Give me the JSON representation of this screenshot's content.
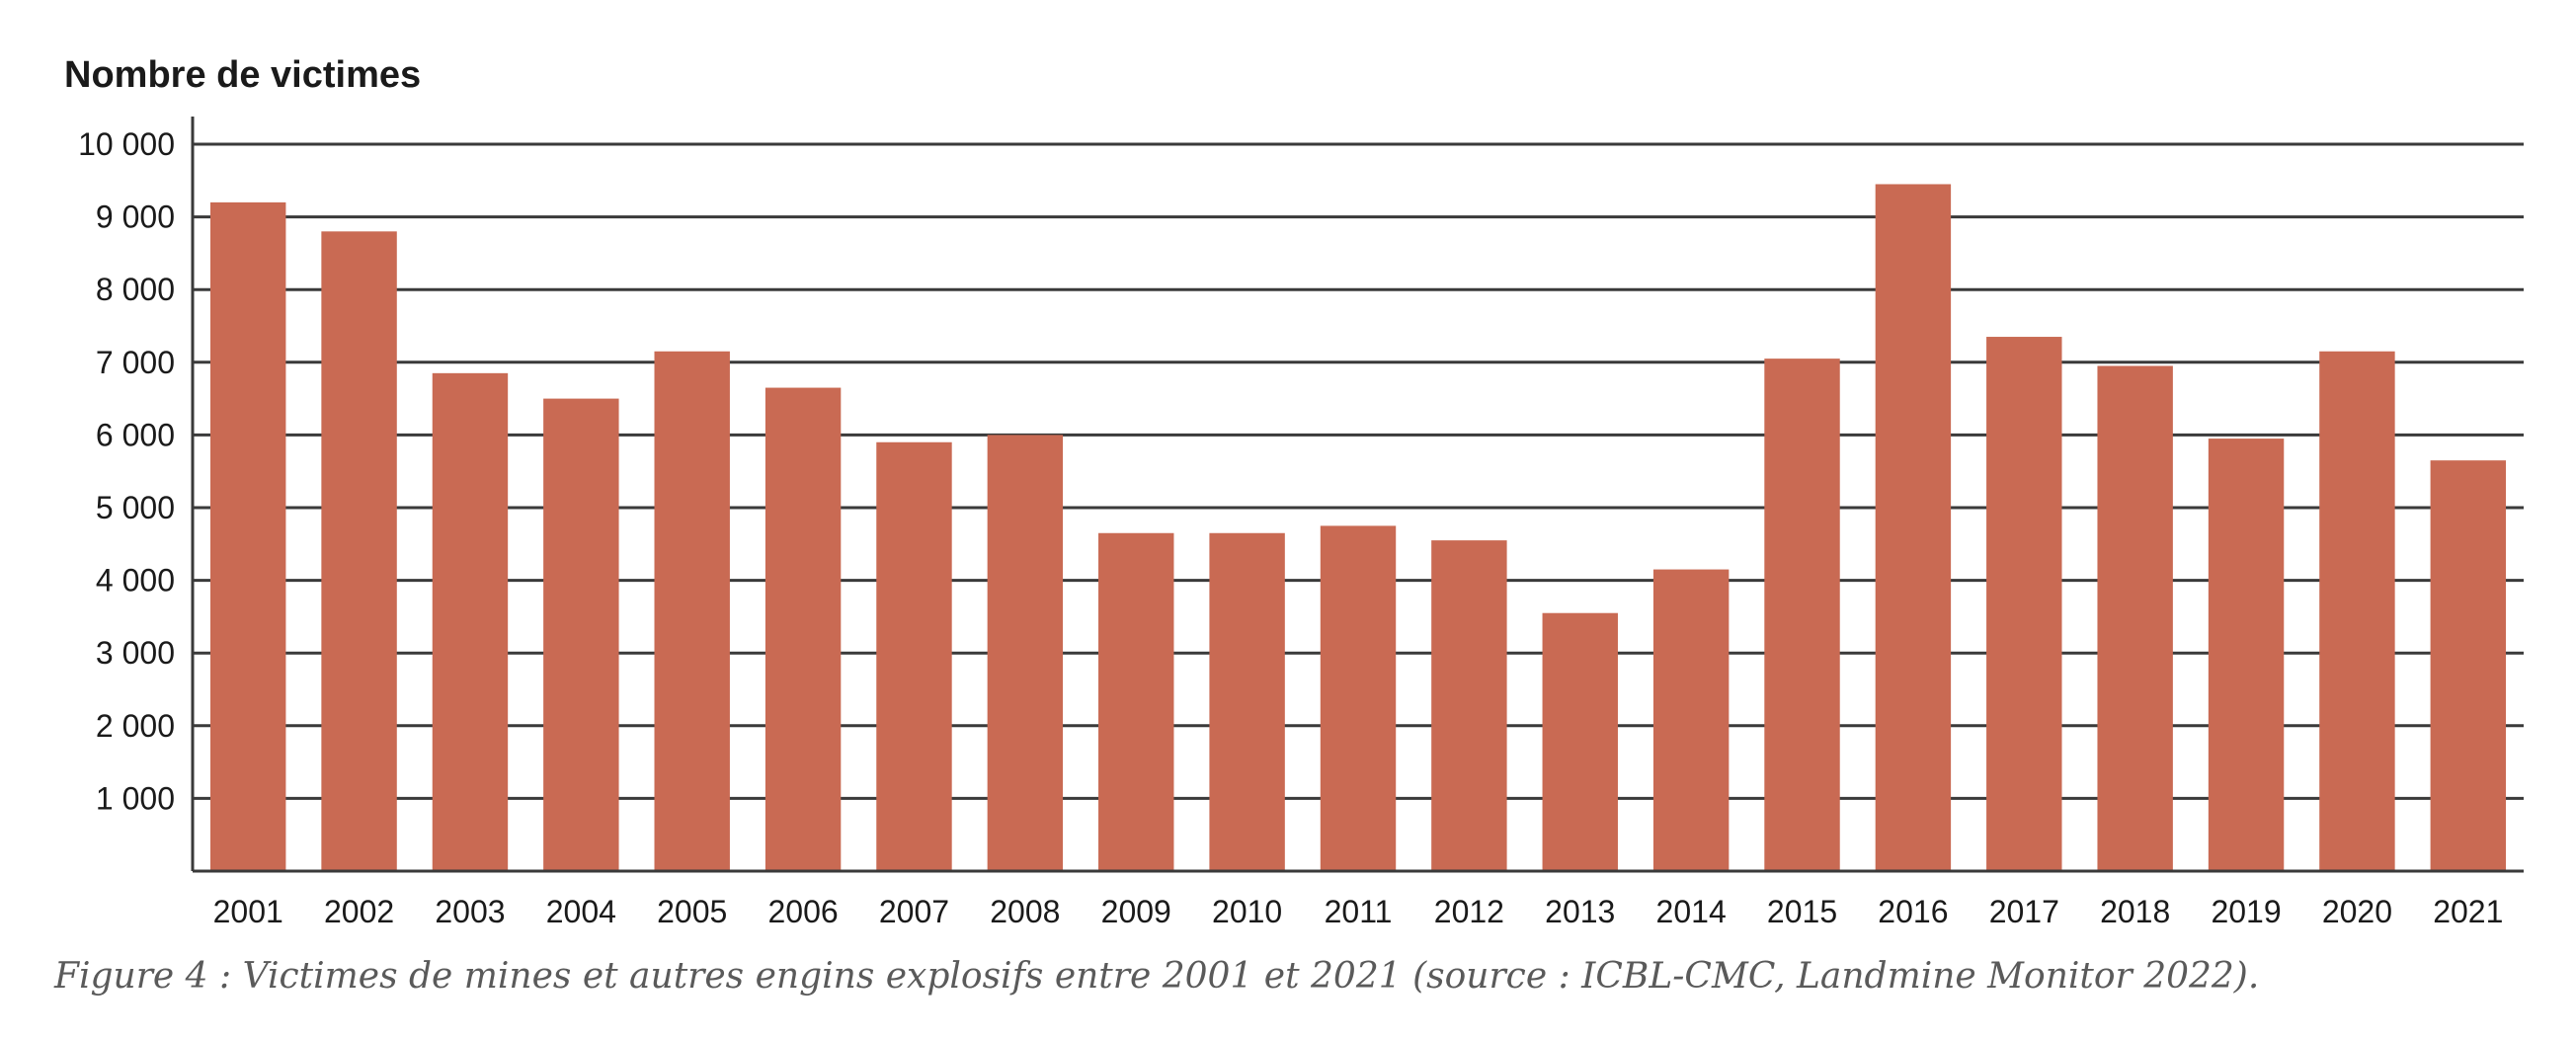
{
  "chart_data": {
    "type": "bar",
    "title": "",
    "ylabel": "Nombre de victimes",
    "xlabel": "",
    "categories": [
      "2001",
      "2002",
      "2003",
      "2004",
      "2005",
      "2006",
      "2007",
      "2008",
      "2009",
      "2010",
      "2011",
      "2012",
      "2013",
      "2014",
      "2015",
      "2016",
      "2017",
      "2018",
      "2019",
      "2020",
      "2021"
    ],
    "values": [
      9200,
      8800,
      6850,
      6500,
      7150,
      6650,
      5900,
      6000,
      4650,
      4650,
      4750,
      4550,
      3550,
      4150,
      7050,
      9450,
      7350,
      6950,
      5950,
      7150,
      5650
    ],
    "ylim": [
      0,
      10000
    ],
    "yticks": [
      1000,
      2000,
      3000,
      4000,
      5000,
      6000,
      7000,
      8000,
      9000,
      10000
    ],
    "ytick_labels": [
      "1 000",
      "2 000",
      "3 000",
      "4 000",
      "5 000",
      "6 000",
      "7 000",
      "8 000",
      "9 000",
      "10 000"
    ],
    "grid": true,
    "legend": "none",
    "bar_color": "#c96a53",
    "grid_color": "#3a3a3a"
  },
  "caption": "Figure 4 : Victimes de mines et autres engins explosifs entre 2001 et 2021 (source : ICBL-CMC, Landmine Monitor 2022)."
}
